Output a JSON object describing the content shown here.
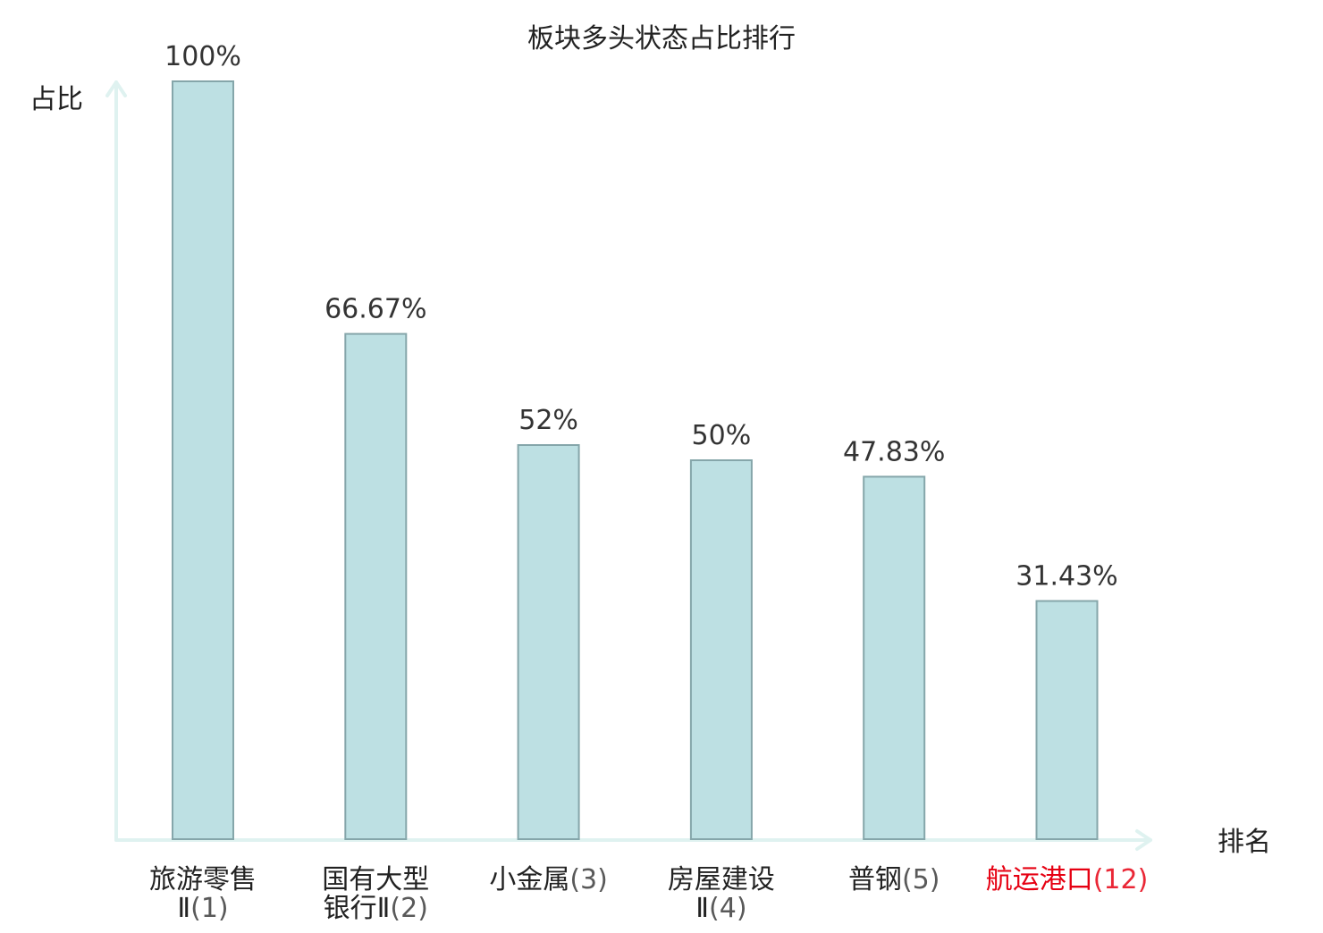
{
  "chart_data": {
    "type": "bar",
    "title": "板块多头状态占比排行",
    "ylabel": "占比",
    "xlabel": "排名",
    "ylim": [
      0,
      100
    ],
    "grid": false,
    "legend": "none",
    "value_suffix": "%",
    "categories": [
      {
        "name_lines": [
          "旅游零售"
        ],
        "rank_prefix": "Ⅱ",
        "rank": "(1)",
        "highlight": false
      },
      {
        "name_lines": [
          "国有大型"
        ],
        "rank_prefix": "银行Ⅱ",
        "rank": "(2)",
        "highlight": false
      },
      {
        "name_lines": [],
        "rank_prefix": "小金属",
        "rank": "(3)",
        "highlight": false
      },
      {
        "name_lines": [
          "房屋建设"
        ],
        "rank_prefix": "Ⅱ",
        "rank": "(4)",
        "highlight": false
      },
      {
        "name_lines": [],
        "rank_prefix": "普钢",
        "rank": "(5)",
        "highlight": false
      },
      {
        "name_lines": [],
        "rank_prefix": "航运港口",
        "rank": "(12)",
        "highlight": true
      }
    ],
    "values": [
      100,
      66.67,
      52,
      50,
      47.83,
      31.43
    ],
    "value_labels": [
      "100%",
      "66.67%",
      "52%",
      "50%",
      "47.83%",
      "31.43%"
    ],
    "colors": {
      "bar_fill": "#bde0e3",
      "bar_stroke": "#85a6aa",
      "axis": "#dff2f0",
      "text": "#222222",
      "value_text": "#333333",
      "highlight": "#e60012"
    }
  }
}
